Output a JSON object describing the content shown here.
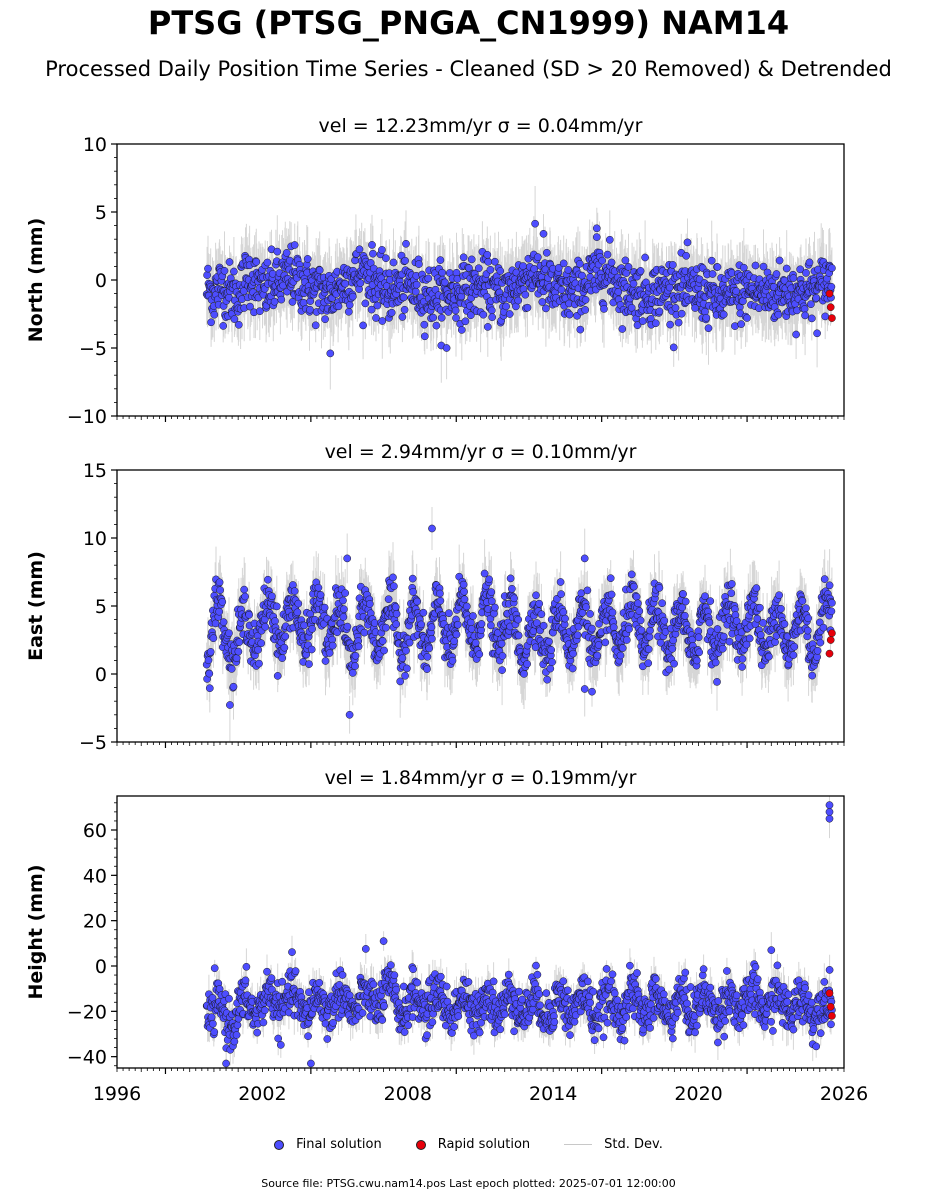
{
  "title": "PTSG (PTSG_PNGA_CN1999) NAM14",
  "subtitle": "Processed Daily Position Time Series - Cleaned (SD > 20 Removed) & Detrended",
  "legend": {
    "final": "Final solution",
    "rapid": "Rapid solution",
    "std": "Std. Dev."
  },
  "footer": "Source file: PTSG.cwu.nam14.pos  Last epoch plotted: 2025-07-01 12:00:00",
  "colors": {
    "final": "#4d4dff",
    "rapid": "#e6000a",
    "std": "#b4b4b4",
    "marker_edge": "#1a1a1a"
  },
  "chart_data": [
    {
      "type": "scatter",
      "panel": "north",
      "title": "vel = 12.23mm/yr   σ = 0.04mm/yr",
      "ylabel": "North (mm)",
      "xlim": [
        1996,
        2026
      ],
      "ylim": [
        -10,
        10
      ],
      "yticks": [
        -10,
        -5,
        0,
        5,
        10
      ],
      "ytick_labels": [
        "−10",
        "−5",
        "0",
        "5",
        "10"
      ],
      "x_range_data": [
        1999.7,
        2025.5
      ],
      "series": [
        {
          "name": "Final solution",
          "x": [
            1999.8,
            2000.0,
            2000.3,
            2000.6,
            2001.0,
            2001.4,
            2002.0,
            2003.2,
            2004.0,
            2004.8,
            2005.5,
            2006.3,
            2007.0,
            2008.0,
            2009.0,
            2010.0,
            2011.0,
            2012.0,
            2013.2,
            2014.0,
            2015.0,
            2016.0,
            2017.0,
            2018.0,
            2019.0,
            2020.0,
            2021.0,
            2022.0,
            2023.0,
            2024.0,
            2025.0,
            2025.4
          ],
          "y": [
            -0.5,
            -1.5,
            0.5,
            -1.0,
            -2.0,
            2.8,
            -1.0,
            2.5,
            -0.5,
            -1.8,
            1.5,
            3.2,
            -1.2,
            0.5,
            -2.0,
            -1.0,
            0.2,
            -1.5,
            3.3,
            -0.8,
            -1.2,
            3.8,
            -0.5,
            -1.5,
            0.0,
            -1.0,
            -2.5,
            -0.8,
            -1.2,
            -1.0,
            -0.5,
            1.5
          ],
          "approx_mean": -0.8,
          "scatter_sd": 1.1,
          "outliers": [
            [
              2004.8,
              -5.4
            ],
            [
              2009.6,
              -5.0
            ],
            [
              2015.8,
              3.8
            ],
            [
              2013.6,
              3.4
            ]
          ]
        },
        {
          "name": "Rapid solution",
          "x": [
            2025.4,
            2025.45,
            2025.5
          ],
          "y": [
            -1.0,
            -2.0,
            -2.8
          ]
        }
      ],
      "std_dev_approx": 2.0
    },
    {
      "type": "scatter",
      "panel": "east",
      "title": "vel = 2.94mm/yr   σ = 0.10mm/yr",
      "ylabel": "East (mm)",
      "xlim": [
        1996,
        2026
      ],
      "ylim": [
        -5,
        15
      ],
      "yticks": [
        -5,
        0,
        5,
        10,
        15
      ],
      "ytick_labels": [
        "−5",
        "0",
        "5",
        "10",
        "15"
      ],
      "x_range_data": [
        1999.7,
        2025.5
      ],
      "series": [
        {
          "name": "Final solution",
          "x": [
            1999.8,
            2000.0,
            2000.5,
            2001.0,
            2002.0,
            2003.0,
            2004.0,
            2005.0,
            2005.5,
            2006.0,
            2007.0,
            2008.0,
            2009.0,
            2010.0,
            2011.0,
            2012.0,
            2013.0,
            2014.0,
            2015.0,
            2016.0,
            2017.0,
            2018.0,
            2019.0,
            2020.0,
            2021.0,
            2022.0,
            2023.0,
            2024.0,
            2025.0,
            2025.4
          ],
          "y": [
            2.0,
            6.6,
            1.5,
            1.0,
            4.5,
            5.0,
            4.0,
            5.5,
            0.5,
            3.5,
            4.5,
            3.0,
            3.5,
            4.0,
            5.5,
            3.5,
            2.0,
            2.5,
            4.0,
            2.0,
            4.5,
            3.5,
            3.0,
            2.5,
            4.0,
            4.5,
            3.0,
            3.0,
            2.5,
            6.5
          ],
          "approx_mean": 3.3,
          "seasonal_amplitude": 1.8,
          "scatter_sd": 0.9,
          "outliers": [
            [
              2009.0,
              10.7
            ],
            [
              2005.5,
              8.5
            ],
            [
              2015.3,
              8.5
            ],
            [
              2005.6,
              -3.0
            ],
            [
              2015.3,
              -1.1
            ],
            [
              2015.6,
              -1.3
            ]
          ]
        },
        {
          "name": "Rapid solution",
          "x": [
            2025.4,
            2025.45,
            2025.5
          ],
          "y": [
            1.5,
            2.5,
            3.0
          ]
        }
      ],
      "std_dev_approx": 1.8
    },
    {
      "type": "scatter",
      "panel": "height",
      "title": "vel = 1.84mm/yr   σ = 0.19mm/yr",
      "ylabel": "Height (mm)",
      "xlabel": "",
      "xlim": [
        1996,
        2026
      ],
      "ylim": [
        -45,
        75
      ],
      "yticks": [
        -40,
        -20,
        0,
        20,
        40,
        60
      ],
      "ytick_labels": [
        "−40",
        "−20",
        "0",
        "20",
        "40",
        "60"
      ],
      "xticks": [
        1996,
        2002,
        2008,
        2014,
        2020,
        2026
      ],
      "xtick_labels": [
        "1996",
        "2002",
        "2008",
        "2014",
        "2020",
        "2026"
      ],
      "x_range_data": [
        1999.7,
        2025.5
      ],
      "series": [
        {
          "name": "Final solution",
          "x": [
            1999.8,
            2000.5,
            2001.0,
            2002.0,
            2003.0,
            2004.0,
            2005.0,
            2006.0,
            2007.0,
            2008.0,
            2009.0,
            2010.0,
            2011.0,
            2012.0,
            2013.0,
            2014.0,
            2015.0,
            2016.0,
            2017.0,
            2018.0,
            2019.0,
            2020.0,
            2021.0,
            2022.0,
            2023.0,
            2024.0,
            2025.0
          ],
          "y": [
            -20,
            -35,
            -25,
            -15,
            -10,
            -20,
            -12,
            -15,
            -5,
            -18,
            -12,
            -20,
            -18,
            -15,
            -18,
            -20,
            -15,
            -22,
            -15,
            -18,
            -20,
            -15,
            -18,
            -12,
            -15,
            -18,
            -20
          ],
          "approx_mean": -17,
          "seasonal_amplitude": 5,
          "scatter_sd": 5,
          "outliers": [
            [
              2025.4,
              71
            ],
            [
              2025.4,
              68
            ],
            [
              2025.4,
              65
            ],
            [
              2007.0,
              11
            ],
            [
              2000.5,
              -43
            ],
            [
              2004.0,
              -43
            ],
            [
              2023.0,
              7
            ]
          ]
        },
        {
          "name": "Rapid solution",
          "x": [
            2025.4,
            2025.45,
            2025.5
          ],
          "y": [
            -12,
            -18,
            -22
          ]
        }
      ],
      "std_dev_approx": 6
    }
  ]
}
